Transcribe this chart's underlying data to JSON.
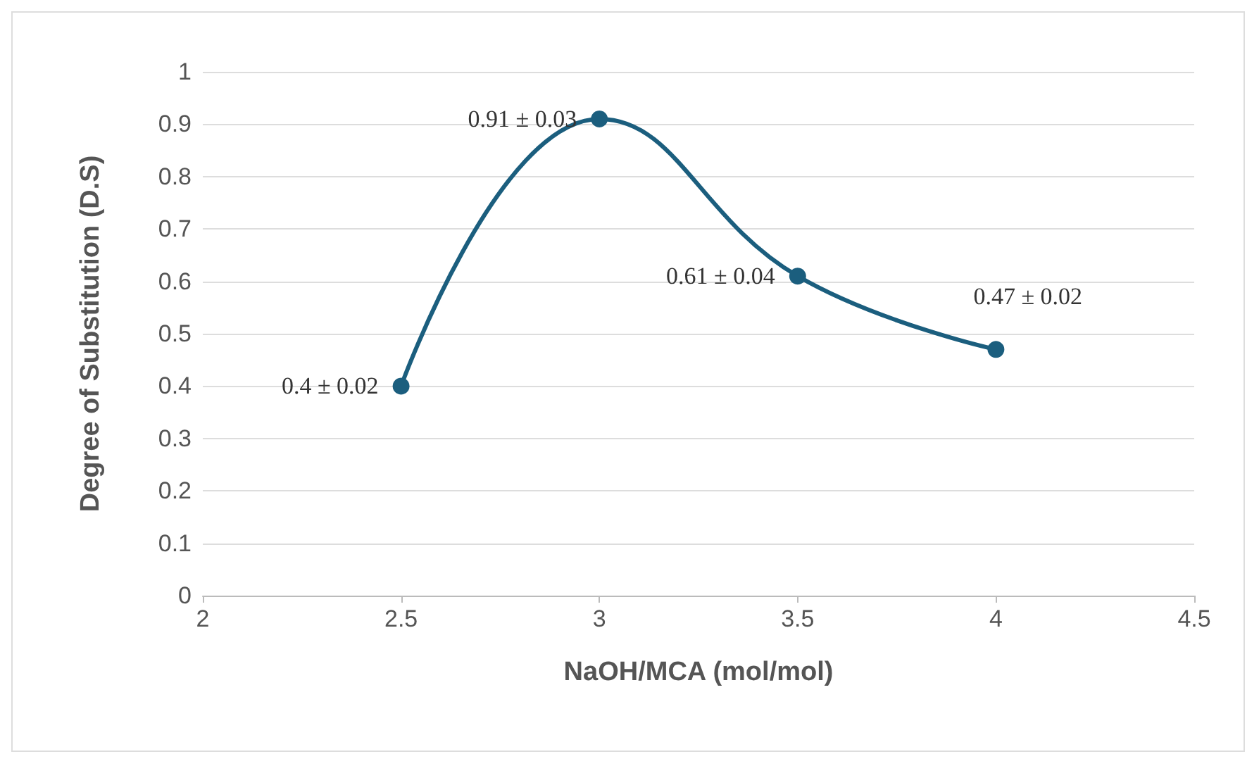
{
  "chart_data": {
    "type": "line",
    "xlabel": "NaOH/MCA (mol/mol)",
    "ylabel": "Degree of Substitution (D.S)",
    "x": [
      2.5,
      3,
      3.5,
      4
    ],
    "series": [
      {
        "color": "#1b5e7e",
        "values": [
          0.4,
          0.91,
          0.61,
          0.47
        ],
        "value_labels": [
          "0.4 ± 0.02",
          "0.91 ± 0.03",
          "0.61 ± 0.04",
          "0.47 ± 0.02"
        ]
      }
    ],
    "xlim": [
      2,
      4.5
    ],
    "xticks": [
      2,
      2.5,
      3,
      3.5,
      4,
      4.5
    ],
    "ylim": [
      0,
      1
    ],
    "yticks": [
      0,
      0.1,
      0.2,
      0.3,
      0.4,
      0.5,
      0.6,
      0.7,
      0.8,
      0.9,
      1
    ],
    "grid": "y",
    "marker": "circle",
    "line_style": "solid"
  }
}
